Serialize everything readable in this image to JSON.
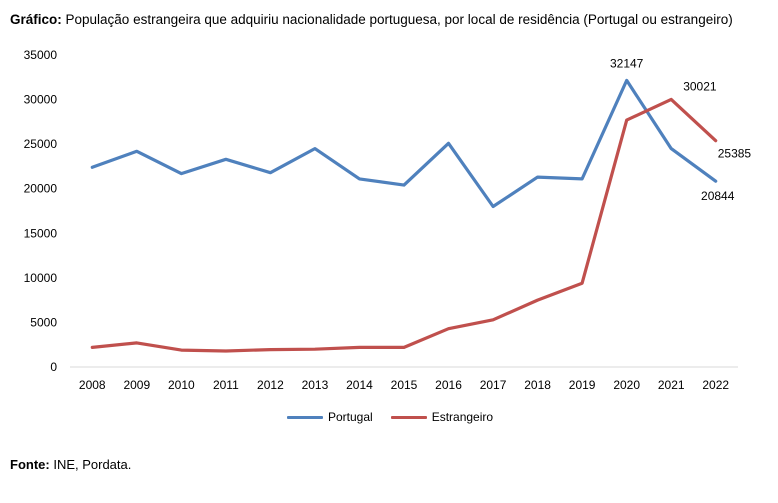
{
  "title": {
    "prefix": "Gráfico:",
    "text": " População estrangeira que adquiriu nacionalidade portuguesa, por local de residência (Portugal ou estrangeiro)"
  },
  "source": {
    "prefix": "Fonte:",
    "text": " INE, Pordata."
  },
  "chart_data": {
    "type": "line",
    "title": "População estrangeira que adquiriu nacionalidade portuguesa, por local de residência (Portugal ou estrangeiro)",
    "xlabel": "",
    "ylabel": "",
    "categories": [
      "2008",
      "2009",
      "2010",
      "2011",
      "2012",
      "2013",
      "2014",
      "2015",
      "2016",
      "2017",
      "2018",
      "2019",
      "2020",
      "2021",
      "2022"
    ],
    "ylim": [
      0,
      35000
    ],
    "yticks": [
      0,
      5000,
      10000,
      15000,
      20000,
      25000,
      30000,
      35000
    ],
    "grid": false,
    "legend_position": "bottom",
    "series": [
      {
        "name": "Portugal",
        "color": "#4f81bd",
        "values": [
          22400,
          24200,
          21700,
          23300,
          21800,
          24500,
          21100,
          20400,
          25100,
          18000,
          21300,
          21100,
          32147,
          24500,
          20844
        ],
        "labels": {
          "12": "32147",
          "14": "20844"
        }
      },
      {
        "name": "Estrangeiro",
        "color": "#c0504d",
        "values": [
          2200,
          2700,
          1900,
          1800,
          1950,
          2000,
          2200,
          2200,
          4300,
          5300,
          7500,
          9400,
          27700,
          30021,
          25385
        ],
        "labels": {
          "13": "30021",
          "14": "25385"
        }
      }
    ]
  }
}
